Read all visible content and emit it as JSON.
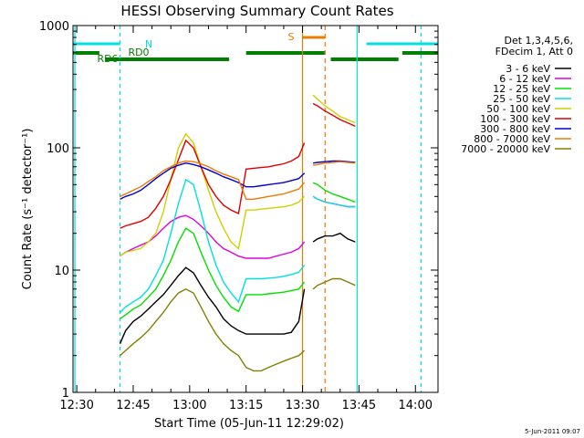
{
  "chart_data": {
    "type": "line",
    "title": "HESSI Observing Summary Count Rates",
    "xlabel": "Start Time (05-Jun-11 12:29:02)",
    "ylabel": "Count Rate (s⁻¹ detector⁻¹)",
    "yscale": "log",
    "ylim": [
      1,
      1000
    ],
    "xlim_minutes_since_1229": [
      0,
      97
    ],
    "xticks": [
      {
        "label": "12:30",
        "t": 1
      },
      {
        "label": "12:45",
        "t": 16
      },
      {
        "label": "13:00",
        "t": 31
      },
      {
        "label": "13:15",
        "t": 46
      },
      {
        "label": "13:30",
        "t": 61
      },
      {
        "label": "13:45",
        "t": 76
      },
      {
        "label": "14:00",
        "t": 91
      }
    ],
    "yticks": [
      {
        "label": "1",
        "v": 1
      },
      {
        "label": "10",
        "v": 10
      },
      {
        "label": "100",
        "v": 100
      },
      {
        "label": "1000",
        "v": 1000
      }
    ],
    "legend": {
      "header": [
        "Det 1,3,4,5,6,",
        "FDecim 1, Att 0"
      ],
      "position": "right"
    },
    "series": [
      {
        "name": "3 - 6 keV",
        "color": "#000000",
        "x": [
          12.5,
          14,
          16,
          18,
          20,
          22,
          24,
          26,
          28,
          30,
          32,
          34,
          36,
          38,
          40,
          42,
          44,
          46,
          48,
          50,
          52,
          54,
          56,
          58,
          60,
          61.5,
          63.8,
          65,
          67,
          69,
          71,
          73,
          75
        ],
        "y": [
          2.5,
          3.2,
          3.8,
          4.2,
          4.8,
          5.5,
          6.3,
          7.5,
          9,
          10.5,
          9.5,
          7.5,
          6,
          5,
          4,
          3.5,
          3.2,
          3,
          3,
          3,
          3,
          3,
          3,
          3.1,
          3.8,
          7,
          17,
          18,
          19,
          19,
          20,
          18,
          17
        ]
      },
      {
        "name": "6 - 12 keV",
        "color": "#e000e0",
        "x": [
          12.5,
          14,
          16,
          18,
          20,
          22,
          24,
          26,
          28,
          30,
          32,
          34,
          36,
          38,
          40,
          42,
          44,
          46,
          48,
          50,
          52,
          54,
          56,
          58,
          60,
          61.5,
          63.8,
          65,
          67,
          69,
          71,
          73,
          75
        ],
        "y": [
          13,
          14,
          15,
          16,
          17,
          19,
          22,
          25,
          27,
          28,
          26,
          23,
          20,
          17,
          15,
          14,
          13,
          12.5,
          12.5,
          12.5,
          12.5,
          13,
          13.5,
          14,
          15,
          17,
          40,
          38,
          36,
          35,
          34,
          33,
          33
        ]
      },
      {
        "name": "12 - 25 keV",
        "color": "#00e000",
        "x": [
          12.5,
          14,
          16,
          18,
          20,
          22,
          24,
          26,
          28,
          30,
          32,
          34,
          36,
          38,
          40,
          42,
          44,
          46,
          48,
          50,
          52,
          54,
          56,
          58,
          60,
          61.5,
          63.8,
          65,
          67,
          69,
          71,
          73,
          75
        ],
        "y": [
          4,
          4.3,
          4.8,
          5.2,
          6,
          7,
          9,
          12,
          17,
          22,
          20,
          14,
          10,
          7.5,
          6,
          5,
          4.6,
          6.3,
          6.3,
          6.3,
          6.4,
          6.5,
          6.6,
          6.8,
          7,
          8,
          52,
          50,
          45,
          42,
          40,
          38,
          36
        ]
      },
      {
        "name": "25 - 50 keV",
        "color": "#00e0e0",
        "x": [
          12.5,
          14,
          16,
          18,
          20,
          22,
          24,
          26,
          28,
          30,
          32,
          34,
          36,
          38,
          40,
          42,
          44,
          46,
          48,
          50,
          52,
          54,
          56,
          58,
          60,
          61.5,
          63.8,
          65,
          67,
          69,
          71,
          73,
          75
        ],
        "y": [
          4.5,
          5,
          5.5,
          6,
          7,
          9,
          12,
          20,
          35,
          55,
          50,
          30,
          17,
          11,
          8,
          6.5,
          5.5,
          8.5,
          8.5,
          8.5,
          8.6,
          8.7,
          8.9,
          9.2,
          9.6,
          11,
          40,
          38,
          36,
          35,
          34,
          33,
          33
        ]
      },
      {
        "name": "50 - 100 keV",
        "color": "#d0d000",
        "x": [
          12.5,
          14,
          16,
          18,
          20,
          22,
          24,
          26,
          28,
          30,
          32,
          34,
          36,
          38,
          40,
          42,
          44,
          46,
          48,
          50,
          52,
          54,
          56,
          58,
          60,
          61.5,
          63.8,
          65,
          67,
          69,
          71,
          73,
          75
        ],
        "y": [
          13,
          14,
          14.5,
          15,
          17,
          20,
          30,
          55,
          100,
          130,
          110,
          70,
          45,
          30,
          22,
          17,
          15,
          31,
          31,
          31.5,
          32,
          32.5,
          33,
          34,
          36,
          40,
          270,
          250,
          220,
          200,
          180,
          170,
          160
        ]
      },
      {
        "name": "100 - 300 keV",
        "color": "#e00000",
        "x": [
          12.5,
          14,
          16,
          18,
          20,
          22,
          24,
          26,
          28,
          30,
          32,
          34,
          36,
          38,
          40,
          42,
          44,
          46,
          48,
          50,
          52,
          54,
          56,
          58,
          60,
          61.5,
          63.8,
          65,
          67,
          69,
          71,
          73,
          75
        ],
        "y": [
          22,
          23,
          24,
          25,
          27,
          32,
          40,
          55,
          80,
          115,
          100,
          70,
          50,
          40,
          34,
          31,
          29,
          67,
          68,
          69,
          70,
          72,
          74,
          78,
          85,
          110,
          230,
          220,
          200,
          185,
          170,
          160,
          150
        ]
      },
      {
        "name": "300 - 800 keV",
        "color": "#0000d0",
        "x": [
          12.5,
          14,
          16,
          18,
          20,
          22,
          24,
          26,
          28,
          30,
          32,
          34,
          36,
          38,
          40,
          42,
          44,
          46,
          48,
          50,
          52,
          54,
          56,
          58,
          60,
          61.5,
          63.8,
          65,
          67,
          69,
          71,
          73,
          75
        ],
        "y": [
          38,
          40,
          42,
          45,
          50,
          56,
          62,
          68,
          72,
          75,
          73,
          70,
          66,
          62,
          58,
          55,
          52,
          48,
          48,
          49,
          50,
          51,
          52,
          54,
          56,
          62,
          75,
          76,
          77,
          78,
          78,
          77,
          76
        ]
      },
      {
        "name": "800 - 7000 keV",
        "color": "#f07800",
        "x": [
          12.5,
          14,
          16,
          18,
          20,
          22,
          24,
          26,
          28,
          30,
          32,
          34,
          36,
          38,
          40,
          42,
          44,
          46,
          48,
          50,
          52,
          54,
          56,
          58,
          60,
          61.5,
          63.8,
          65,
          67,
          69,
          71,
          73,
          75
        ],
        "y": [
          40,
          42,
          45,
          48,
          53,
          58,
          65,
          70,
          75,
          78,
          77,
          74,
          70,
          65,
          61,
          58,
          55,
          38,
          38,
          39,
          40,
          41,
          42,
          44,
          46,
          52,
          72,
          73,
          75,
          76,
          77,
          76,
          75
        ]
      },
      {
        "name": "7000 - 20000 keV",
        "color": "#808000",
        "x": [
          12.5,
          14,
          16,
          18,
          20,
          22,
          24,
          26,
          28,
          30,
          32,
          34,
          36,
          38,
          40,
          42,
          44,
          46,
          48,
          50,
          52,
          54,
          56,
          58,
          60,
          61.5,
          63.8,
          65,
          67,
          69,
          71,
          73,
          75
        ],
        "y": [
          2,
          2.2,
          2.5,
          2.8,
          3.2,
          3.8,
          4.5,
          5.5,
          6.5,
          7,
          6.5,
          5,
          3.8,
          3,
          2.5,
          2.2,
          2,
          1.6,
          1.5,
          1.5,
          1.6,
          1.7,
          1.8,
          1.9,
          2,
          2.2,
          7,
          7.5,
          8,
          8.5,
          8.5,
          8,
          7.5
        ]
      }
    ],
    "annotations": [
      {
        "label": "N",
        "color": "#00e0e0"
      },
      {
        "label": "RD0",
        "color": "#008000"
      },
      {
        "label": "RD6",
        "color": "#008000"
      },
      {
        "label": "S",
        "color": "#f07800"
      }
    ]
  },
  "footer_timestamp": "5-Jun-2011 09:07"
}
